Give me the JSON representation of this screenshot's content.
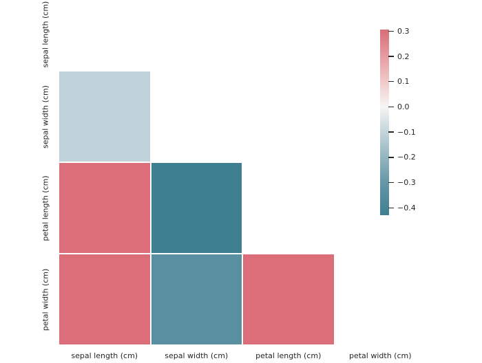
{
  "text_color": "#262626",
  "chart_data": {
    "type": "heatmap",
    "title": "",
    "description": "Lower-triangle correlation heatmap of iris features; upper triangle and diagonal are masked (white)",
    "x_tick_labels": [
      "sepal length (cm)",
      "sepal width (cm)",
      "petal length (cm)",
      "petal width (cm)"
    ],
    "y_tick_labels": [
      "sepal length (cm)",
      "sepal width (cm)",
      "petal length (cm)",
      "petal width (cm)"
    ],
    "cells": [
      {
        "row": "sepal width (cm)",
        "col": "sepal length (cm)",
        "row_i": 1,
        "col_i": 0,
        "value": -0.12,
        "color": "#c1d3da"
      },
      {
        "row": "petal length (cm)",
        "col": "sepal length (cm)",
        "row_i": 2,
        "col_i": 0,
        "value": 0.31,
        "color": "#db6e78"
      },
      {
        "row": "petal length (cm)",
        "col": "sepal width (cm)",
        "row_i": 2,
        "col_i": 1,
        "value": -0.43,
        "color": "#3e7f91"
      },
      {
        "row": "petal width (cm)",
        "col": "sepal length (cm)",
        "row_i": 3,
        "col_i": 0,
        "value": 0.31,
        "color": "#db6e78"
      },
      {
        "row": "petal width (cm)",
        "col": "sepal width (cm)",
        "row_i": 3,
        "col_i": 1,
        "value": -0.37,
        "color": "#5890a2"
      },
      {
        "row": "petal width (cm)",
        "col": "petal length (cm)",
        "row_i": 3,
        "col_i": 2,
        "value": 0.31,
        "color": "#db6e78"
      }
    ],
    "masked_region": "upper triangle and diagonal",
    "grid": false,
    "legend_position": "colorbar-right",
    "colorbar": {
      "vmax_approx": 0.31,
      "vmin_approx": -0.43,
      "tick_labels": [
        "0.3",
        "0.2",
        "0.1",
        "0.0",
        "−0.1",
        "−0.2",
        "−0.3",
        "−0.4"
      ],
      "gradient_stops": [
        {
          "pos": 0,
          "color": "#d86d77"
        },
        {
          "pos": 14.3,
          "color": "#e59ba1"
        },
        {
          "pos": 27.9,
          "color": "#f0c9c9"
        },
        {
          "pos": 41.5,
          "color": "#f7f5f4"
        },
        {
          "pos": 55.1,
          "color": "#c3d5db"
        },
        {
          "pos": 68.7,
          "color": "#94b6c1"
        },
        {
          "pos": 82.3,
          "color": "#6697a7"
        },
        {
          "pos": 100,
          "color": "#3e7f91"
        }
      ]
    }
  }
}
